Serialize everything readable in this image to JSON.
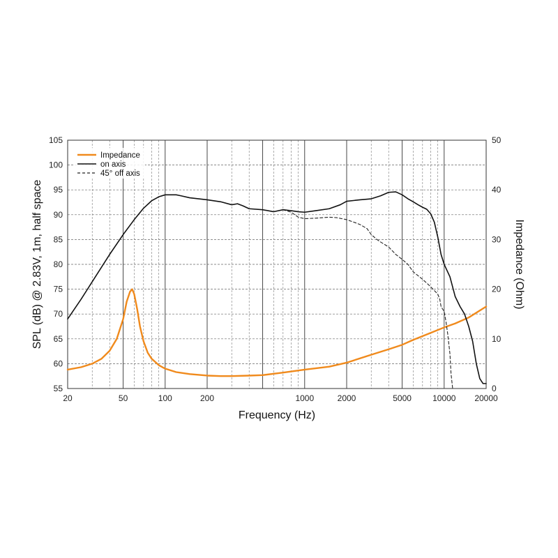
{
  "chart_data": {
    "type": "line",
    "xlabel": "Frequency (Hz)",
    "ylabel": "SPL (dB) @ 2.83V, 1m, half space",
    "y2label": "Impedance (Ohm)",
    "xscale": "log",
    "xlim": [
      20,
      20000
    ],
    "ylim": [
      55,
      105
    ],
    "y2lim": [
      0,
      50
    ],
    "x_ticks": [
      20,
      50,
      100,
      200,
      1000,
      2000,
      5000,
      10000,
      20000
    ],
    "x_tick_labels": [
      "20",
      "50",
      "100",
      "200",
      "1000",
      "2000",
      "5000",
      "10000",
      "20000"
    ],
    "y_ticks": [
      55,
      60,
      65,
      70,
      75,
      80,
      85,
      90,
      95,
      100,
      105
    ],
    "y_tick_labels": [
      "55",
      "60",
      "65",
      "70",
      "75",
      "80",
      "85",
      "90",
      "95",
      "100",
      "105"
    ],
    "y2_ticks": [
      0,
      10,
      20,
      30,
      40,
      50
    ],
    "y2_tick_labels": [
      "0",
      "10",
      "20",
      "30",
      "40",
      "50"
    ],
    "grid": true,
    "legend_position": "top-left",
    "colors": {
      "impedance": "#f08a1c",
      "on_axis": "#111111",
      "off_axis": "#222222",
      "grid": "#555555"
    },
    "series": [
      {
        "name": "Impedance",
        "axis": "right",
        "style": "solid",
        "x": [
          20,
          25,
          30,
          35,
          40,
          45,
          50,
          53,
          56,
          58,
          60,
          63,
          66,
          70,
          75,
          80,
          90,
          100,
          120,
          150,
          200,
          250,
          300,
          400,
          500,
          700,
          1000,
          1500,
          2000,
          3000,
          4000,
          5000,
          6000,
          8000,
          10000,
          12000,
          15000,
          20000
        ],
        "values": [
          3.8,
          4.3,
          5.0,
          6.0,
          7.6,
          10.0,
          14.0,
          17.5,
          19.5,
          20.0,
          19.0,
          16.0,
          12.5,
          9.5,
          7.2,
          6.0,
          4.7,
          4.0,
          3.3,
          2.9,
          2.6,
          2.5,
          2.5,
          2.6,
          2.7,
          3.2,
          3.8,
          4.4,
          5.2,
          6.8,
          7.9,
          8.8,
          9.8,
          11.2,
          12.3,
          13.1,
          14.3,
          16.5
        ]
      },
      {
        "name": "on axis",
        "axis": "left",
        "style": "solid",
        "x": [
          20,
          25,
          30,
          40,
          50,
          60,
          70,
          80,
          90,
          100,
          120,
          130,
          150,
          200,
          250,
          300,
          330,
          360,
          400,
          500,
          600,
          700,
          800,
          900,
          1000,
          1200,
          1500,
          1800,
          2000,
          2500,
          3000,
          3500,
          4000,
          4500,
          5000,
          5500,
          6000,
          6500,
          7000,
          7500,
          8000,
          8500,
          9000,
          9500,
          10000,
          11000,
          12000,
          13000,
          14000,
          15000,
          16000,
          17000,
          18000,
          19000,
          20000
        ],
        "values": [
          69,
          73,
          76.5,
          82,
          86,
          89,
          91.3,
          92.8,
          93.6,
          94,
          94,
          93.8,
          93.4,
          93,
          92.6,
          92,
          92.2,
          91.8,
          91.2,
          91,
          90.6,
          91,
          90.8,
          90.6,
          90.5,
          90.8,
          91.2,
          92,
          92.7,
          93,
          93.2,
          93.8,
          94.5,
          94.6,
          94,
          93.2,
          92.6,
          92,
          91.5,
          91.1,
          90.2,
          88.5,
          85.5,
          82,
          80,
          77.5,
          73.5,
          71.5,
          70,
          67.5,
          64.5,
          60,
          57,
          56,
          56
        ]
      },
      {
        "name": "45° off axis",
        "axis": "left",
        "style": "dashed",
        "x": [
          700,
          800,
          900,
          1000,
          1200,
          1500,
          1700,
          2000,
          2300,
          2500,
          2800,
          3000,
          3300,
          3500,
          4000,
          4500,
          5000,
          5500,
          6000,
          7000,
          8000,
          9000,
          9300,
          9500,
          10000,
          10300,
          10600,
          11000,
          11200,
          11500
        ],
        "values": [
          91,
          90.5,
          89.5,
          89.2,
          89.3,
          89.5,
          89.4,
          89,
          88.4,
          88,
          87.2,
          86,
          85,
          84.5,
          83.5,
          82,
          81,
          80,
          78.5,
          77,
          75.5,
          74,
          73,
          71.5,
          70.5,
          68.5,
          66,
          62,
          58,
          55
        ]
      }
    ]
  }
}
